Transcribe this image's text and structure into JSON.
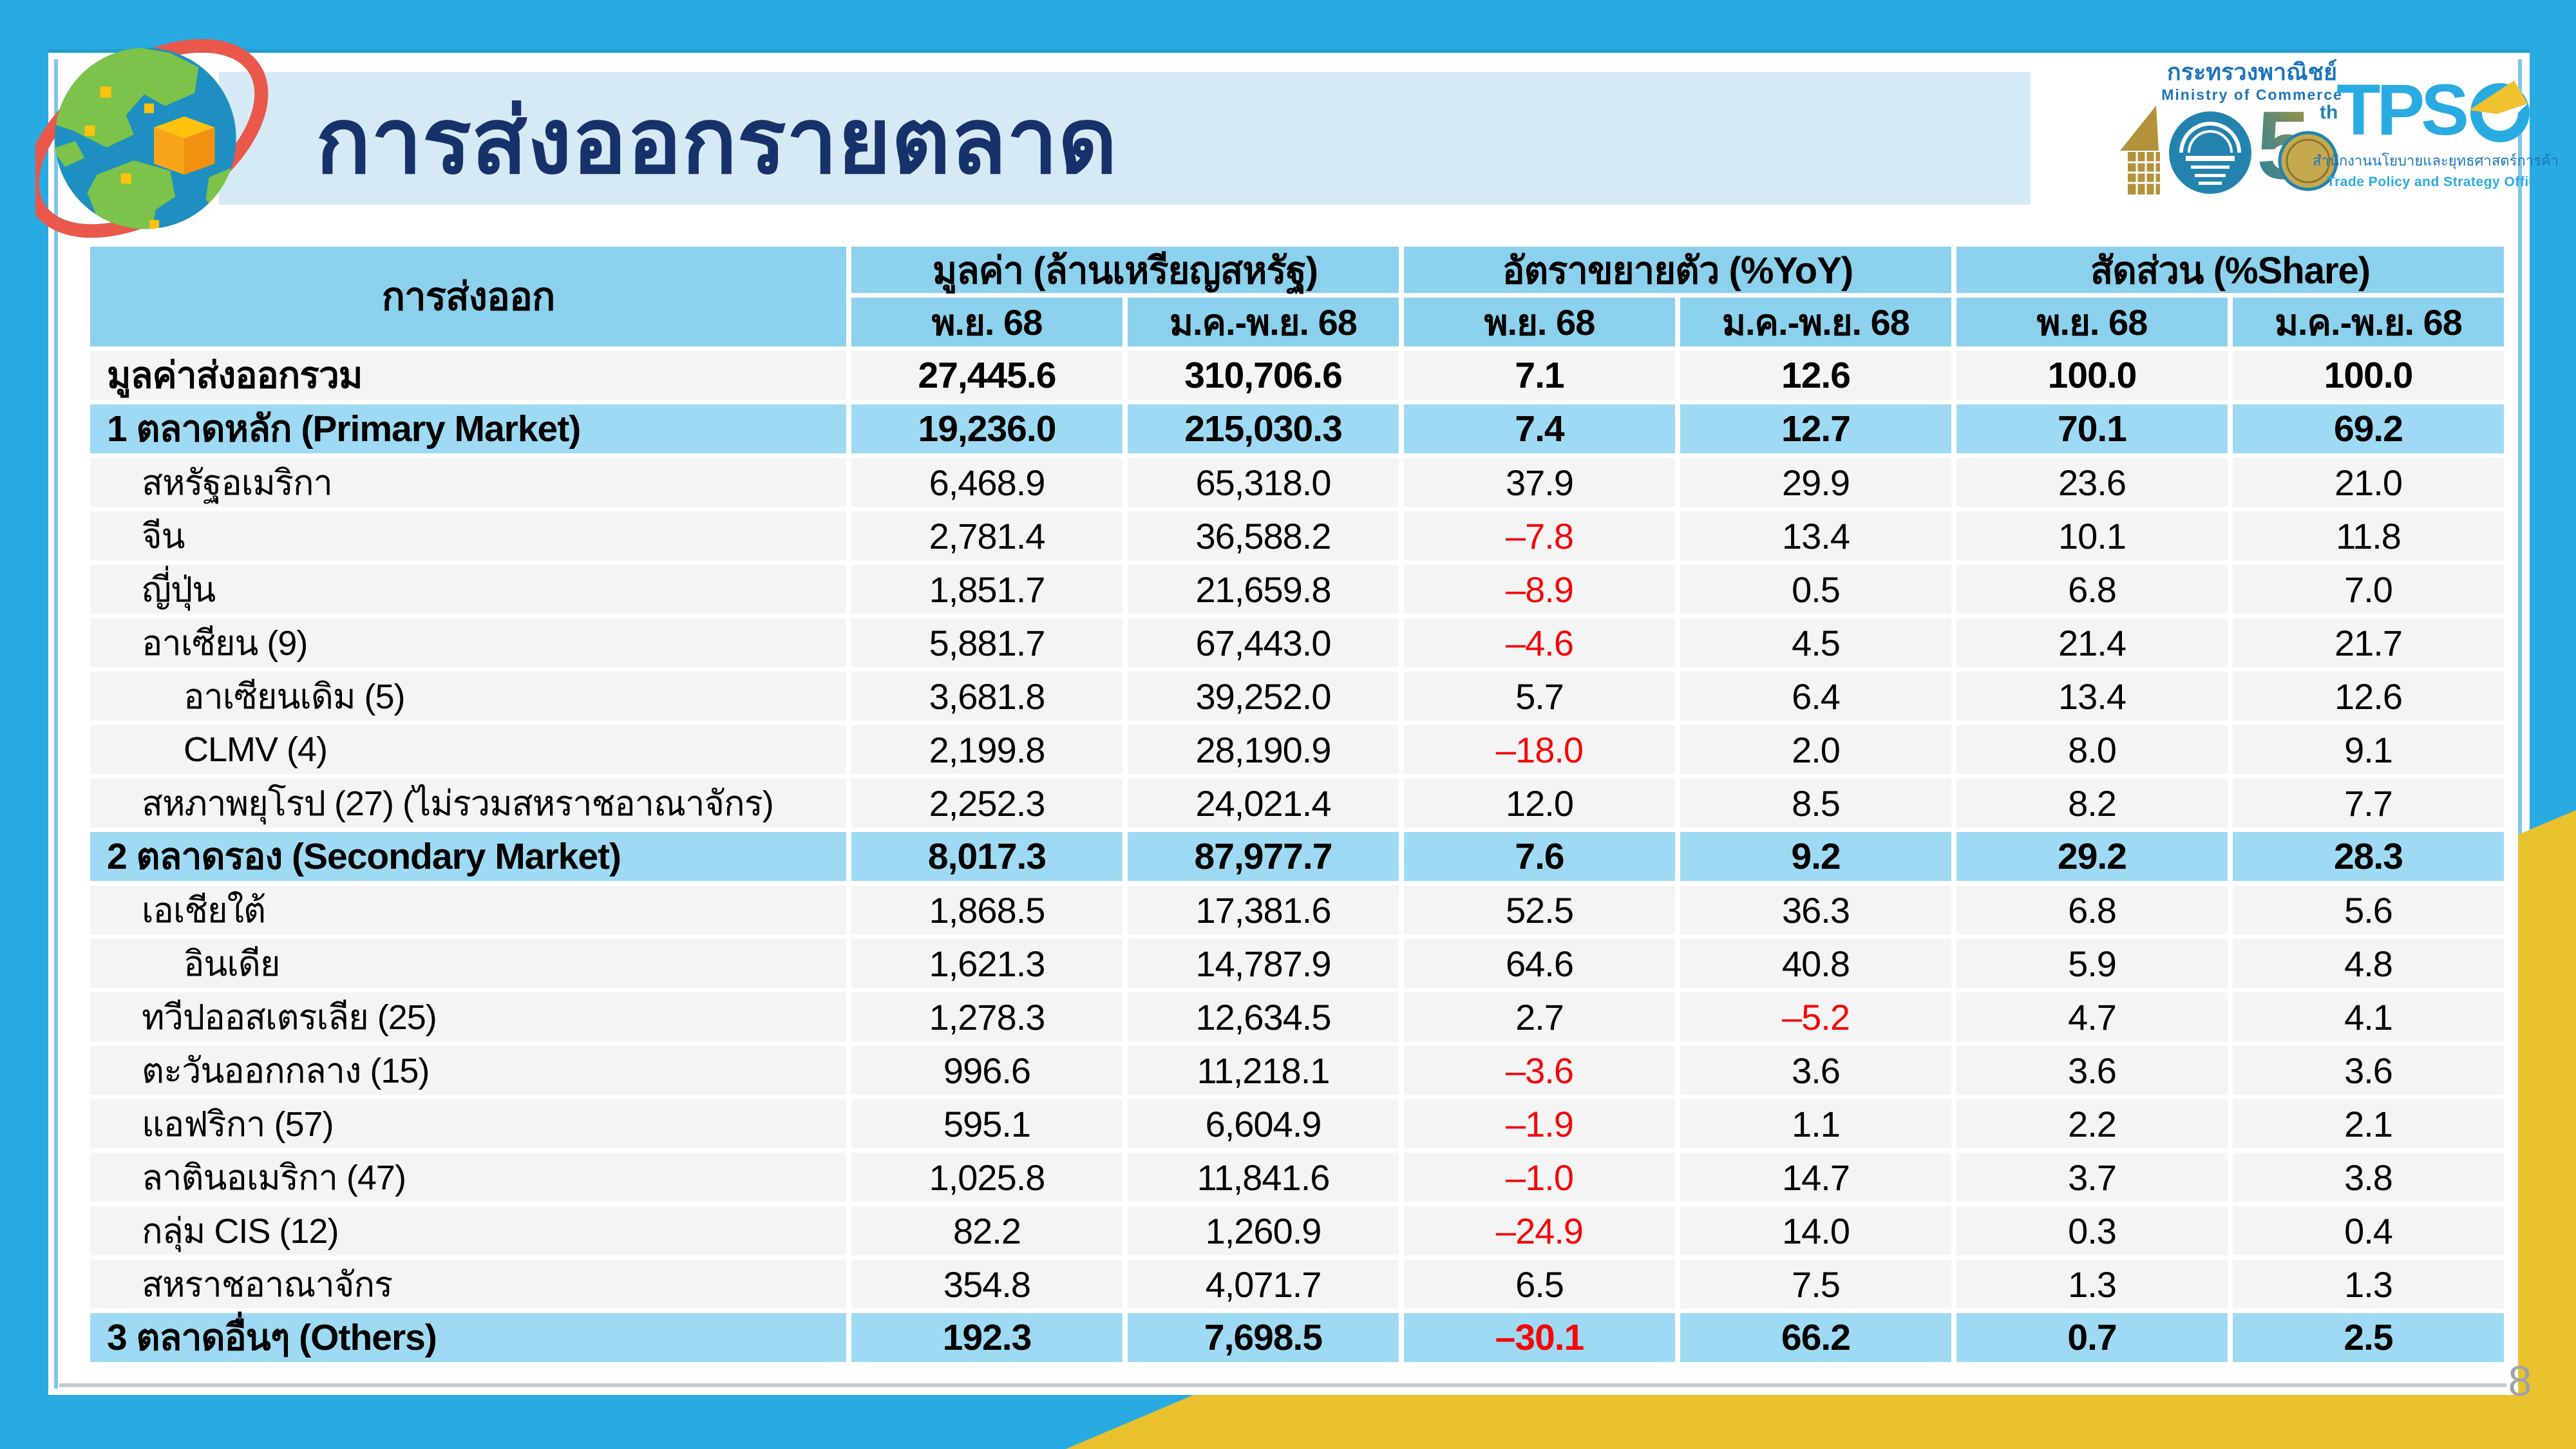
{
  "slide": {
    "title": "การส่งออกรายตลาด",
    "page_number": "8"
  },
  "colors": {
    "frame_blue": "#29ABE2",
    "banner_blue": "#D6EAF6",
    "title_navy": "#17316B",
    "header_cell_blue": "#8CD1EE",
    "section_row_blue": "#9EDAF3",
    "data_row_gray": "#F4F4F4",
    "negative_red": "#F40808",
    "accent_yellow": "#E9C12F",
    "page_number_gray": "#9CA3A8"
  },
  "logos": {
    "moc": {
      "line1": "กระทรวงพาณิชย์",
      "line2": "Ministry of Commerce",
      "emblem_five": "5",
      "emblem_suffix": "th"
    },
    "tpso": {
      "acronym_tps": "TPS",
      "thai": "สำนักงานนโยบายและยุทธศาสตร์การค้า",
      "english": "Trade Policy and Strategy Office"
    }
  },
  "table": {
    "col_group_label": "การส่งออก",
    "groups": [
      {
        "label": "มูลค่า (ล้านเหรียญสหรัฐ)"
      },
      {
        "label": "อัตราขยายตัว (%YoY)"
      },
      {
        "label": "สัดส่วน (%Share)"
      }
    ],
    "subheaders": [
      "พ.ย. 68",
      "ม.ค.-พ.ย. 68",
      "พ.ย. 68",
      "ม.ค.-พ.ย. 68",
      "พ.ย. 68",
      "ม.ค.-พ.ย. 68"
    ],
    "rows": [
      {
        "label": "มูลค่าส่งออกรวม",
        "indent": 0,
        "style": "total",
        "values": [
          "27,445.6",
          "310,706.6",
          "7.1",
          "12.6",
          "100.0",
          "100.0"
        ]
      },
      {
        "label": "1 ตลาดหลัก (Primary Market)",
        "indent": 0,
        "style": "section",
        "values": [
          "19,236.0",
          "215,030.3",
          "7.4",
          "12.7",
          "70.1",
          "69.2"
        ]
      },
      {
        "label": "สหรัฐอเมริกา",
        "indent": 1,
        "style": "normal",
        "values": [
          "6,468.9",
          "65,318.0",
          "37.9",
          "29.9",
          "23.6",
          "21.0"
        ]
      },
      {
        "label": "จีน",
        "indent": 1,
        "style": "normal",
        "values": [
          "2,781.4",
          "36,588.2",
          "–7.8",
          "13.4",
          "10.1",
          "11.8"
        ]
      },
      {
        "label": "ญี่ปุ่น",
        "indent": 1,
        "style": "normal",
        "values": [
          "1,851.7",
          "21,659.8",
          "–8.9",
          "0.5",
          "6.8",
          "7.0"
        ]
      },
      {
        "label": "อาเซียน (9)",
        "indent": 1,
        "style": "normal",
        "values": [
          "5,881.7",
          "67,443.0",
          "–4.6",
          "4.5",
          "21.4",
          "21.7"
        ]
      },
      {
        "label": "อาเซียนเดิม (5)",
        "indent": 2,
        "style": "normal",
        "values": [
          "3,681.8",
          "39,252.0",
          "5.7",
          "6.4",
          "13.4",
          "12.6"
        ]
      },
      {
        "label": "CLMV (4)",
        "indent": 2,
        "style": "normal",
        "values": [
          "2,199.8",
          "28,190.9",
          "–18.0",
          "2.0",
          "8.0",
          "9.1"
        ]
      },
      {
        "label": "สหภาพยุโรป (27) (ไม่รวมสหราชอาณาจักร)",
        "indent": 1,
        "style": "normal",
        "values": [
          "2,252.3",
          "24,021.4",
          "12.0",
          "8.5",
          "8.2",
          "7.7"
        ]
      },
      {
        "label": "2 ตลาดรอง (Secondary Market)",
        "indent": 0,
        "style": "section",
        "values": [
          "8,017.3",
          "87,977.7",
          "7.6",
          "9.2",
          "29.2",
          "28.3"
        ]
      },
      {
        "label": "เอเชียใต้",
        "indent": 1,
        "style": "normal",
        "values": [
          "1,868.5",
          "17,381.6",
          "52.5",
          "36.3",
          "6.8",
          "5.6"
        ]
      },
      {
        "label": "อินเดีย",
        "indent": 2,
        "style": "normal",
        "values": [
          "1,621.3",
          "14,787.9",
          "64.6",
          "40.8",
          "5.9",
          "4.8"
        ]
      },
      {
        "label": "ทวีปออสเตรเลีย (25)",
        "indent": 1,
        "style": "normal",
        "values": [
          "1,278.3",
          "12,634.5",
          "2.7",
          "–5.2",
          "4.7",
          "4.1"
        ]
      },
      {
        "label": "ตะวันออกกลาง (15)",
        "indent": 1,
        "style": "normal",
        "values": [
          "996.6",
          "11,218.1",
          "–3.6",
          "3.6",
          "3.6",
          "3.6"
        ]
      },
      {
        "label": "แอฟริกา (57)",
        "indent": 1,
        "style": "normal",
        "values": [
          "595.1",
          "6,604.9",
          "–1.9",
          "1.1",
          "2.2",
          "2.1"
        ]
      },
      {
        "label": "ลาตินอเมริกา (47)",
        "indent": 1,
        "style": "normal",
        "values": [
          "1,025.8",
          "11,841.6",
          "–1.0",
          "14.7",
          "3.7",
          "3.8"
        ]
      },
      {
        "label": "กลุ่ม CIS (12)",
        "indent": 1,
        "style": "normal",
        "values": [
          "82.2",
          "1,260.9",
          "–24.9",
          "14.0",
          "0.3",
          "0.4"
        ]
      },
      {
        "label": "สหราชอาณาจักร",
        "indent": 1,
        "style": "normal",
        "values": [
          "354.8",
          "4,071.7",
          "6.5",
          "7.5",
          "1.3",
          "1.3"
        ]
      },
      {
        "label": "3 ตลาดอื่นๆ (Others)",
        "indent": 0,
        "style": "section",
        "values": [
          "192.3",
          "7,698.5",
          "–30.1",
          "66.2",
          "0.7",
          "2.5"
        ]
      }
    ]
  }
}
